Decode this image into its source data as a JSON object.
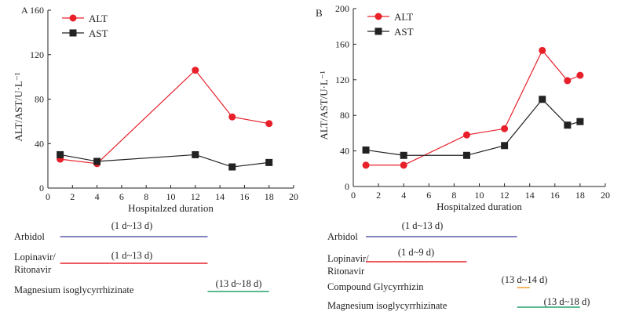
{
  "chart_data": [
    {
      "type": "line",
      "panel_label": "A",
      "xlabel": "Hospitalzed duration",
      "ylabel": "ALT/AST/U·L⁻¹",
      "xlim": [
        0,
        20
      ],
      "ylim": [
        0,
        160
      ],
      "xticks": [
        "0",
        "2",
        "4",
        "6",
        "8",
        "10",
        "12",
        "14",
        "16",
        "18",
        "20"
      ],
      "yticks": [
        "0",
        "40",
        "80",
        "120",
        "160"
      ],
      "legend_position": "top-left",
      "series": [
        {
          "name": "ALT",
          "color": "#e8202a",
          "marker": "circle",
          "x": [
            1,
            4,
            12,
            15,
            18
          ],
          "y": [
            26,
            22,
            106,
            64,
            58
          ]
        },
        {
          "name": "AST",
          "color": "#222222",
          "marker": "square",
          "x": [
            1,
            4,
            12,
            15,
            18
          ],
          "y": [
            30,
            24,
            30,
            19,
            23
          ]
        }
      ],
      "treatments": [
        {
          "name": "Arbidol",
          "range_label": "(1 d~13 d)",
          "start": 1,
          "end": 13,
          "color": "#5a5aa8"
        },
        {
          "name": "Lopinavir/ Ritonavir",
          "range_label": "(1 d~13 d)",
          "start": 1,
          "end": 13,
          "color": "#e8202a"
        },
        {
          "name": "Magnesium isoglycyrrhizinate",
          "range_label": "(13 d~18 d)",
          "start": 13,
          "end": 18,
          "color": "#22a36a"
        }
      ]
    },
    {
      "type": "line",
      "panel_label": "B",
      "xlabel": "Hospitalzed duration",
      "ylabel": "ALT/AST/U·L⁻¹",
      "xlim": [
        0,
        20
      ],
      "ylim": [
        0,
        200
      ],
      "xticks": [
        "0",
        "2",
        "4",
        "6",
        "8",
        "10",
        "12",
        "14",
        "16",
        "18",
        "20"
      ],
      "yticks": [
        "0",
        "40",
        "80",
        "120",
        "160",
        "200"
      ],
      "legend_position": "top-left",
      "series": [
        {
          "name": "ALT",
          "color": "#e8202a",
          "marker": "circle",
          "x": [
            1,
            4,
            9,
            12,
            15,
            17,
            18
          ],
          "y": [
            24,
            24,
            58,
            65,
            153,
            119,
            125
          ]
        },
        {
          "name": "AST",
          "color": "#222222",
          "marker": "square",
          "x": [
            1,
            4,
            9,
            12,
            15,
            17,
            18
          ],
          "y": [
            41,
            35,
            35,
            46,
            98,
            69,
            73
          ]
        }
      ],
      "treatments": [
        {
          "name": "Arbidol",
          "range_label": "(1 d~13 d)",
          "start": 1,
          "end": 13,
          "color": "#5a5aa8"
        },
        {
          "name": "Lopinavir/ Ritonavir",
          "range_label": "(1 d~9 d)",
          "start": 1,
          "end": 9,
          "color": "#e8202a"
        },
        {
          "name": "Compound Glycyrrhizin",
          "range_label": "(13 d~14 d)",
          "start": 13,
          "end": 14,
          "color": "#f0a030"
        },
        {
          "name": "Magnesium isoglycyrrhizinate",
          "range_label": "(13 d~18 d)",
          "start": 13,
          "end": 18,
          "color": "#22a36a"
        }
      ]
    }
  ]
}
